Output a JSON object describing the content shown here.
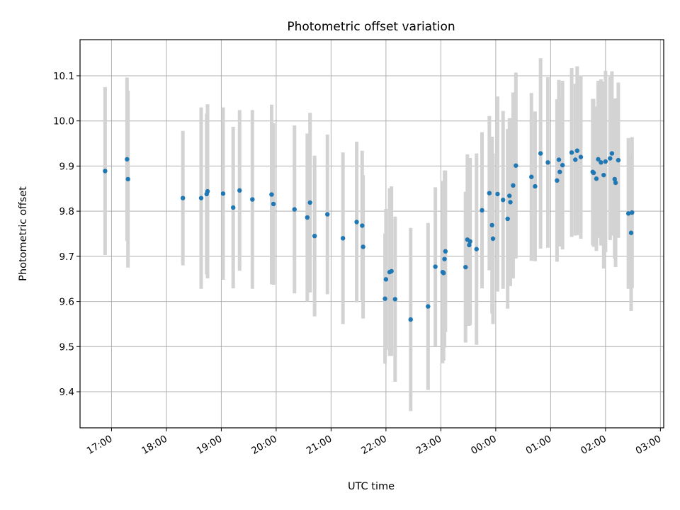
{
  "chart_data": {
    "type": "scatter",
    "title": "Photometric offset variation",
    "xlabel": "UTC time",
    "ylabel": "Photometric offset",
    "x_tick_labels": [
      "17:00",
      "18:00",
      "19:00",
      "20:00",
      "21:00",
      "22:00",
      "23:00",
      "00:00",
      "01:00",
      "02:00",
      "03:00"
    ],
    "y_tick_labels": [
      "9.4",
      "9.5",
      "9.6",
      "9.7",
      "9.8",
      "9.9",
      "10.0",
      "10.1"
    ],
    "ylim": [
      9.32,
      10.18
    ],
    "grid": true,
    "marker_color": "#1f77b4",
    "errorbar_color": "#d3d3d3",
    "series": [
      {
        "x": [
          "16:53",
          "17:17",
          "17:18",
          "18:18",
          "18:38",
          "18:44",
          "18:45",
          "19:02",
          "19:13",
          "19:20",
          "19:34",
          "19:55",
          "19:57",
          "20:20",
          "20:34",
          "20:37",
          "20:42",
          "20:56",
          "21:13",
          "21:28",
          "21:34",
          "21:35",
          "21:59",
          "22:00",
          "22:04",
          "22:06",
          "22:10",
          "22:27",
          "22:46",
          "22:54",
          "23:02",
          "23:03",
          "23:04",
          "23:05",
          "23:27",
          "23:29",
          "23:31",
          "23:32",
          "23:39",
          "23:45",
          "23:53",
          "23:56",
          "23:57",
          "24:02",
          "24:08",
          "24:13",
          "24:15",
          "24:16",
          "24:19",
          "24:22",
          "24:39",
          "24:43",
          "24:49",
          "24:57",
          "25:07",
          "25:09",
          "25:10",
          "25:13",
          "25:23",
          "25:27",
          "25:29",
          "25:33",
          "25:46",
          "25:47",
          "25:50",
          "25:52",
          "25:55",
          "25:58",
          "26:00",
          "26:05",
          "26:07",
          "26:10",
          "26:11",
          "26:14",
          "26:25",
          "26:28",
          "26:29"
        ],
        "y": [
          9.889,
          9.915,
          9.871,
          9.829,
          9.829,
          9.838,
          9.844,
          9.839,
          9.808,
          9.846,
          9.826,
          9.837,
          9.816,
          9.804,
          9.786,
          9.819,
          9.745,
          9.793,
          9.74,
          9.776,
          9.768,
          9.721,
          9.606,
          9.649,
          9.665,
          9.667,
          9.605,
          9.56,
          9.589,
          9.677,
          9.665,
          9.663,
          9.694,
          9.711,
          9.676,
          9.737,
          9.725,
          9.733,
          9.716,
          9.802,
          9.84,
          9.769,
          9.739,
          9.838,
          9.825,
          9.783,
          9.834,
          9.82,
          9.857,
          9.901,
          9.876,
          9.855,
          9.928,
          9.908,
          9.868,
          9.914,
          9.887,
          9.902,
          9.93,
          9.914,
          9.934,
          9.92,
          9.887,
          9.885,
          9.872,
          9.915,
          9.908,
          9.88,
          9.91,
          9.917,
          9.928,
          9.871,
          9.863,
          9.913,
          9.795,
          9.752,
          9.797
        ],
        "yerr": [
          0.186,
          0.181,
          0.196,
          0.149,
          0.201,
          0.178,
          0.193,
          0.191,
          0.179,
          0.178,
          0.198,
          0.199,
          0.179,
          0.186,
          0.186,
          0.199,
          0.178,
          0.177,
          0.19,
          0.178,
          0.166,
          0.159,
          0.144,
          0.156,
          0.186,
          0.188,
          0.183,
          0.203,
          0.185,
          0.176,
          0.202,
          0.194,
          0.196,
          0.179,
          0.167,
          0.189,
          0.179,
          0.185,
          0.212,
          0.173,
          0.171,
          0.196,
          0.189,
          0.216,
          0.197,
          0.199,
          0.172,
          0.186,
          0.206,
          0.206,
          0.186,
          0.166,
          0.211,
          0.189,
          0.18,
          0.177,
          0.165,
          0.187,
          0.187,
          0.168,
          0.187,
          0.181,
          0.162,
          0.164,
          0.16,
          0.174,
          0.184,
          0.207,
          0.201,
          0.181,
          0.182,
          0.176,
          0.187,
          0.172,
          0.167,
          0.173,
          0.167
        ]
      }
    ]
  }
}
